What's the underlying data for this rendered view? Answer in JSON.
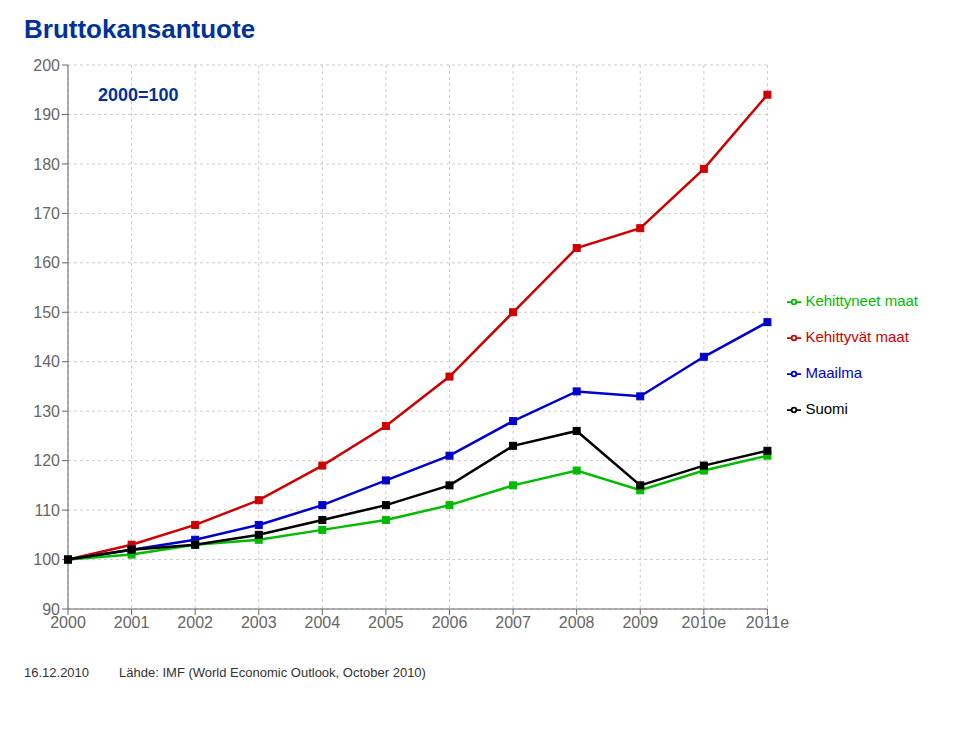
{
  "chart_data": {
    "type": "line",
    "title": "Bruttokansantuote",
    "categories": [
      "2000",
      "2001",
      "2002",
      "2003",
      "2004",
      "2005",
      "2006",
      "2007",
      "2008",
      "2009",
      "2010e",
      "2011e"
    ],
    "series": [
      {
        "name": "Kehittyvät maat",
        "color": "#cc0000",
        "values": [
          100,
          103,
          107,
          112,
          119,
          127,
          137,
          150,
          163,
          167,
          179,
          194
        ]
      },
      {
        "name": "Maailma",
        "color": "#0000cc",
        "values": [
          100,
          102,
          104,
          107,
          111,
          116,
          121,
          128,
          134,
          133,
          141,
          148
        ]
      },
      {
        "name": "Kehittyneet maat",
        "color": "#00bb00",
        "values": [
          100,
          101,
          103,
          104,
          106,
          108,
          111,
          115,
          118,
          114,
          118,
          121
        ]
      },
      {
        "name": "Suomi",
        "color": "#000000",
        "values": [
          100,
          102,
          103,
          105,
          108,
          111,
          115,
          123,
          126,
          115,
          119,
          122
        ]
      }
    ],
    "ylim": [
      90,
      200
    ],
    "yticks": [
      90,
      100,
      110,
      120,
      130,
      140,
      150,
      160,
      170,
      180,
      190,
      200
    ],
    "grid": true,
    "legend": "right",
    "marker": "square",
    "annotation": "2000=100",
    "footer": [
      "16.12.2010",
      "Lähde: IMF (World Economic Outlook, October 2010)"
    ]
  }
}
